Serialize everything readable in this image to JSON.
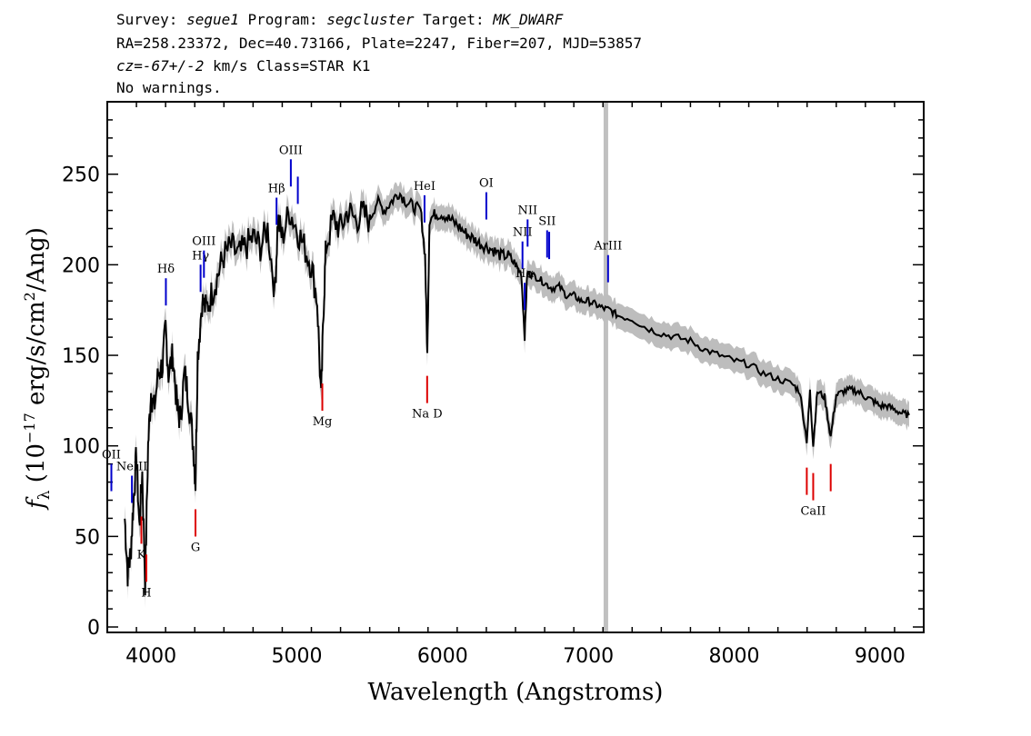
{
  "header": {
    "line1": {
      "survey_label": "Survey: ",
      "survey": "segue1",
      "program_label": " Program: ",
      "program": "segcluster",
      "target_label": " Target: ",
      "target": "MK_DWARF"
    },
    "line2": "RA=258.23372, Dec=40.73166, Plate=2247, Fiber=207, MJD=53857",
    "line3": {
      "cz_value": "cz=-67+/-2",
      "rest": " km/s Class=STAR K1"
    },
    "line4": "No warnings."
  },
  "chart_data": {
    "type": "line",
    "xlabel": "Wavelength (Angstroms)",
    "ylabel": "f_λ (10^-17 erg/s/cm^2/Ang)",
    "xlim": [
      3700,
      9300
    ],
    "ylim": [
      -3,
      290
    ],
    "xticks": [
      4000,
      5000,
      6000,
      7000,
      8000,
      9000
    ],
    "yticks": [
      0,
      50,
      100,
      150,
      200,
      250
    ],
    "colors": {
      "spectrum": "#000000",
      "error_band": "#bdbdbd",
      "emission": "#0000cc",
      "absorption": "#dd0000",
      "mask": "#c0c0c0"
    },
    "masked_wavelength": 7120,
    "series": [
      {
        "x": [
          3820,
          3840,
          3860,
          3880,
          3900,
          3920,
          3940,
          3960,
          3980,
          4000,
          4020,
          4050,
          4080,
          4100,
          4120,
          4150,
          4180,
          4200,
          4230,
          4260,
          4290,
          4305,
          4320,
          4350,
          4380,
          4420,
          4460,
          4500,
          4550,
          4600,
          4650,
          4700,
          4750,
          4800,
          4850,
          4870,
          4900,
          4950,
          5000,
          5050,
          5100,
          5140,
          5167,
          5185,
          5200,
          5250,
          5300,
          5350,
          5400,
          5450,
          5500,
          5550,
          5600,
          5650,
          5700,
          5750,
          5800,
          5850,
          5880,
          5895,
          5910,
          5950,
          6000,
          6050,
          6100,
          6150,
          6200,
          6250,
          6300,
          6350,
          6400,
          6450,
          6500,
          6540,
          6563,
          6580,
          6600,
          6650,
          6700,
          6750,
          6800,
          6850,
          6900,
          6950,
          7000,
          7050,
          7100,
          7150,
          7200,
          7300,
          7400,
          7500,
          7600,
          7700,
          7800,
          7900,
          8000,
          8100,
          8200,
          8300,
          8400,
          8450,
          8498,
          8520,
          8542,
          8570,
          8620,
          8662,
          8700,
          8750,
          8800,
          8850,
          8900,
          8950,
          9000,
          9050,
          9100,
          9150,
          9200
        ],
        "y": [
          60,
          30,
          40,
          70,
          95,
          55,
          85,
          25,
          100,
          130,
          120,
          140,
          145,
          165,
          140,
          150,
          120,
          115,
          140,
          125,
          100,
          80,
          150,
          180,
          175,
          185,
          195,
          205,
          210,
          205,
          210,
          215,
          210,
          220,
          185,
          225,
          215,
          230,
          220,
          210,
          200,
          180,
          125,
          180,
          210,
          225,
          220,
          230,
          225,
          228,
          225,
          235,
          230,
          235,
          240,
          235,
          232,
          230,
          205,
          150,
          225,
          228,
          228,
          225,
          222,
          218,
          215,
          212,
          210,
          208,
          205,
          205,
          200,
          195,
          160,
          195,
          195,
          193,
          190,
          187,
          188,
          183,
          183,
          180,
          180,
          178,
          176,
          175,
          172,
          170,
          165,
          162,
          160,
          158,
          153,
          150,
          147,
          145,
          140,
          137,
          134,
          130,
          103,
          130,
          100,
          130,
          127,
          105,
          128,
          130,
          131,
          130,
          127,
          125,
          122,
          122,
          120,
          118,
          117
        ],
        "err": 7
      }
    ],
    "lines": [
      {
        "label": "OII",
        "wave": 3728,
        "kind": "emission"
      },
      {
        "label": "NeIII",
        "wave": 3869,
        "kind": "emission"
      },
      {
        "label": "K",
        "wave": 3934,
        "kind": "absorption"
      },
      {
        "label": "H",
        "wave": 3968,
        "kind": "absorption"
      },
      {
        "label": "Hδ",
        "wave": 4102,
        "kind": "emission"
      },
      {
        "label": "G",
        "wave": 4305,
        "kind": "absorption"
      },
      {
        "label": "Hγ",
        "wave": 4340,
        "kind": "emission"
      },
      {
        "label": "OIII",
        "wave": 4363,
        "kind": "emission"
      },
      {
        "label": "Hβ",
        "wave": 4861,
        "kind": "emission"
      },
      {
        "label": "OIII",
        "wave": 4959,
        "kind": "emission"
      },
      {
        "label": "",
        "wave": 5007,
        "kind": "emission"
      },
      {
        "label": "Mg",
        "wave": 5175,
        "kind": "absorption"
      },
      {
        "label": "HeI",
        "wave": 5876,
        "kind": "emission"
      },
      {
        "label": "Na D",
        "wave": 5894,
        "kind": "absorption"
      },
      {
        "label": "OI",
        "wave": 6300,
        "kind": "emission"
      },
      {
        "label": "NII",
        "wave": 6548,
        "kind": "emission"
      },
      {
        "label": "Hα",
        "wave": 6563,
        "kind": "emission"
      },
      {
        "label": "NII",
        "wave": 6583,
        "kind": "emission"
      },
      {
        "label": "SII",
        "wave": 6717,
        "kind": "emission"
      },
      {
        "label": "",
        "wave": 6731,
        "kind": "emission"
      },
      {
        "label": "ArIII",
        "wave": 7135,
        "kind": "emission"
      },
      {
        "label": "",
        "wave": 8498,
        "kind": "absorption"
      },
      {
        "label": "CaII",
        "wave": 8542,
        "kind": "absorption"
      },
      {
        "label": "",
        "wave": 8662,
        "kind": "absorption"
      }
    ]
  }
}
